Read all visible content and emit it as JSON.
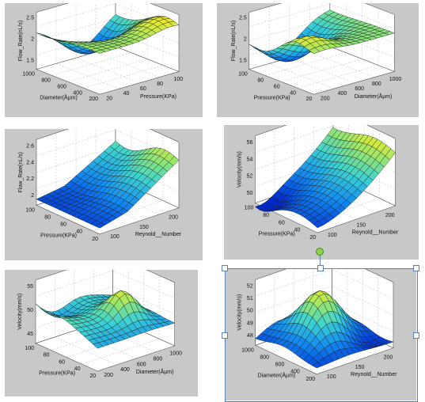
{
  "chart_data": [
    {
      "type": "surface3d",
      "zlabel": "Flow_Rate(nL/s)",
      "left_label": "Diameter(Åµm)",
      "right_label": "Pressure(KPa)",
      "z_ticks": [
        "2.5",
        "2",
        "1.5"
      ],
      "left_ticks": [
        "1000",
        "800",
        "600",
        "400",
        "200"
      ],
      "right_ticks": [
        "20",
        "40",
        "60",
        "80",
        "100"
      ]
    },
    {
      "type": "surface3d",
      "zlabel": "Flow_Rate(nL/s)",
      "left_label": "Pressure(KPa)",
      "right_label": "Diameter(Åµm)",
      "z_ticks": [
        "2.5",
        "2",
        "1.5"
      ],
      "left_ticks": [
        "100",
        "80",
        "60",
        "40",
        "20"
      ],
      "right_ticks": [
        "200",
        "400",
        "600",
        "800",
        "1000"
      ]
    },
    {
      "type": "surface3d",
      "zlabel": "Flow_Rate(nL/s)",
      "left_label": "Pressure(KPa)",
      "right_label": "Reynold__Number",
      "z_ticks": [
        "2.6",
        "2.4",
        "2.2",
        "2"
      ],
      "left_ticks": [
        "100",
        "80",
        "60",
        "40",
        "20"
      ],
      "right_ticks": [
        "100",
        "150",
        "200"
      ]
    },
    {
      "type": "surface3d",
      "zlabel": "Velocity(mm/s)",
      "left_label": "Pressure(KPa)",
      "right_label": "Reynold__Number",
      "z_ticks": [
        "56",
        "54",
        "52",
        "50"
      ],
      "left_ticks": [
        "100",
        "80",
        "60",
        "40",
        "20"
      ],
      "right_ticks": [
        "100",
        "150",
        "200"
      ]
    },
    {
      "type": "surface3d",
      "zlabel": "Velocity(mm/s)",
      "left_label": "Pressure(KPa)",
      "right_label": "Diameter(Åµm)",
      "z_ticks": [
        "55",
        "50",
        "45"
      ],
      "left_ticks": [
        "100",
        "80",
        "60",
        "40",
        "20"
      ],
      "right_ticks": [
        "200",
        "400",
        "600",
        "800",
        "1000"
      ]
    },
    {
      "type": "surface3d",
      "zlabel": "Velocity(mm/s)",
      "left_label": "Diameter(Åµm)",
      "right_label": "Reynold__Number",
      "z_ticks": [
        "52",
        "51",
        "50",
        "49",
        "48"
      ],
      "left_ticks": [
        "1000",
        "800",
        "600",
        "400",
        "200"
      ],
      "right_ticks": [
        "100",
        "150",
        "200"
      ]
    }
  ]
}
